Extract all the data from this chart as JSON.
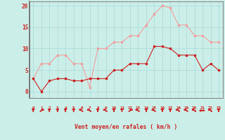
{
  "x": [
    0,
    1,
    2,
    3,
    4,
    5,
    6,
    7,
    8,
    9,
    10,
    11,
    12,
    13,
    14,
    15,
    16,
    17,
    18,
    19,
    20,
    21,
    22,
    23
  ],
  "y_avg": [
    3,
    0,
    2.5,
    3,
    3,
    2.5,
    2.5,
    3,
    3,
    3,
    5,
    5,
    6.5,
    6.5,
    6.5,
    10.5,
    10.5,
    10,
    8.5,
    8.5,
    8.5,
    5,
    6.5,
    5
  ],
  "y_gust": [
    3,
    6.5,
    6.5,
    8.5,
    8.5,
    6.5,
    6.5,
    1,
    10,
    10,
    11.5,
    11.5,
    13,
    13,
    15.5,
    18,
    20,
    19.5,
    15.5,
    15.5,
    13,
    13,
    11.5,
    11.5
  ],
  "color_avg": "#cc2222",
  "color_gust": "#f0a0a0",
  "bg_color": "#cceee8",
  "grid_color": "#aadddd",
  "xlabel": "Vent moyen/en rafales ( km/h )",
  "ylabel_ticks": [
    0,
    5,
    10,
    15,
    20
  ],
  "xlim": [
    -0.5,
    23.5
  ],
  "ylim": [
    -1.5,
    21
  ],
  "xlabel_color": "#cc2222",
  "tick_color": "#cc2222",
  "ytick_labels": [
    "0",
    "5",
    "10",
    "15",
    "20"
  ],
  "arrow_angles": [
    0,
    45,
    0,
    0,
    0,
    0,
    315,
    315,
    0,
    315,
    0,
    0,
    45,
    315,
    0,
    315,
    0,
    0,
    315,
    315,
    315,
    270,
    315,
    0
  ],
  "spine_color": "#888888"
}
